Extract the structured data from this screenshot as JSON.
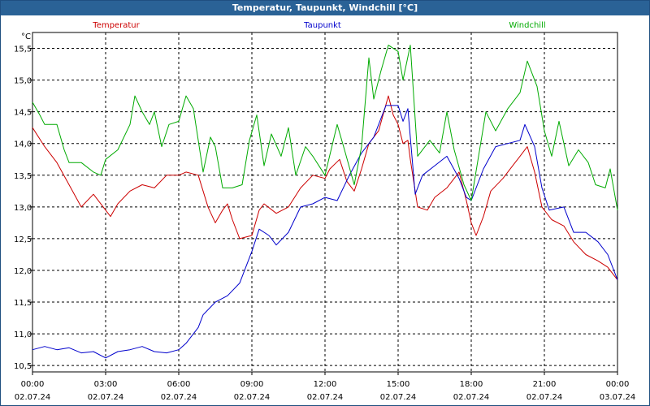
{
  "chart_data": {
    "type": "line",
    "title": "Temperatur, Taupunkt, Windchill [°C]",
    "unit_label": "°C",
    "ylim": [
      10.4,
      15.75
    ],
    "y_ticks": [
      "15,5",
      "15,0",
      "14,5",
      "14,0",
      "13,5",
      "13,0",
      "12,5",
      "12,0",
      "11,5",
      "11,0",
      "10,5"
    ],
    "y_tick_values": [
      15.5,
      15.0,
      14.5,
      14.0,
      13.5,
      13.0,
      12.5,
      12.0,
      11.5,
      11.0,
      10.5
    ],
    "xlim": [
      0,
      24
    ],
    "x_ticks": [
      {
        "hour": 0,
        "time": "00:00",
        "date": "02.07.24"
      },
      {
        "hour": 3,
        "time": "03:00",
        "date": "02.07.24"
      },
      {
        "hour": 6,
        "time": "06:00",
        "date": "02.07.24"
      },
      {
        "hour": 9,
        "time": "09:00",
        "date": "02.07.24"
      },
      {
        "hour": 12,
        "time": "12:00",
        "date": "02.07.24"
      },
      {
        "hour": 15,
        "time": "15:00",
        "date": "02.07.24"
      },
      {
        "hour": 18,
        "time": "18:00",
        "date": "02.07.24"
      },
      {
        "hour": 21,
        "time": "21:00",
        "date": "02.07.24"
      },
      {
        "hour": 24,
        "time": "00:00",
        "date": "03.07.24"
      }
    ],
    "grid": true,
    "series": [
      {
        "name": "Temperatur",
        "color": "#cc0000",
        "points": [
          [
            0,
            14.25
          ],
          [
            0.5,
            13.95
          ],
          [
            1,
            13.7
          ],
          [
            1.5,
            13.35
          ],
          [
            2,
            13.0
          ],
          [
            2.5,
            13.2
          ],
          [
            3,
            12.95
          ],
          [
            3.2,
            12.85
          ],
          [
            3.5,
            13.05
          ],
          [
            4,
            13.25
          ],
          [
            4.5,
            13.35
          ],
          [
            5,
            13.3
          ],
          [
            5.5,
            13.5
          ],
          [
            6,
            13.5
          ],
          [
            6.3,
            13.55
          ],
          [
            6.8,
            13.5
          ],
          [
            7.2,
            13.0
          ],
          [
            7.5,
            12.75
          ],
          [
            7.8,
            12.95
          ],
          [
            8,
            13.05
          ],
          [
            8.2,
            12.8
          ],
          [
            8.5,
            12.5
          ],
          [
            9,
            12.55
          ],
          [
            9.3,
            12.95
          ],
          [
            9.5,
            13.05
          ],
          [
            10,
            12.9
          ],
          [
            10.5,
            13.0
          ],
          [
            11,
            13.3
          ],
          [
            11.5,
            13.5
          ],
          [
            12,
            13.45
          ],
          [
            12.2,
            13.6
          ],
          [
            12.6,
            13.75
          ],
          [
            12.9,
            13.4
          ],
          [
            13.2,
            13.25
          ],
          [
            13.5,
            13.6
          ],
          [
            13.8,
            14.0
          ],
          [
            14.2,
            14.2
          ],
          [
            14.6,
            14.75
          ],
          [
            14.8,
            14.45
          ],
          [
            15,
            14.3
          ],
          [
            15.2,
            14.0
          ],
          [
            15.4,
            14.05
          ],
          [
            15.5,
            13.75
          ],
          [
            15.8,
            13.0
          ],
          [
            16.2,
            12.95
          ],
          [
            16.5,
            13.15
          ],
          [
            17,
            13.3
          ],
          [
            17.5,
            13.55
          ],
          [
            17.8,
            13.1
          ],
          [
            18,
            12.75
          ],
          [
            18.2,
            12.55
          ],
          [
            18.5,
            12.85
          ],
          [
            18.8,
            13.25
          ],
          [
            19.3,
            13.45
          ],
          [
            19.7,
            13.65
          ],
          [
            20,
            13.8
          ],
          [
            20.3,
            13.95
          ],
          [
            20.6,
            13.55
          ],
          [
            20.9,
            13.0
          ],
          [
            21.3,
            12.8
          ],
          [
            21.8,
            12.7
          ],
          [
            22.2,
            12.45
          ],
          [
            22.7,
            12.25
          ],
          [
            23.2,
            12.15
          ],
          [
            23.6,
            12.05
          ],
          [
            24,
            11.85
          ]
        ]
      },
      {
        "name": "Taupunkt",
        "color": "#0000cc",
        "points": [
          [
            0,
            10.75
          ],
          [
            0.5,
            10.8
          ],
          [
            1,
            10.75
          ],
          [
            1.5,
            10.78
          ],
          [
            2,
            10.7
          ],
          [
            2.5,
            10.72
          ],
          [
            3,
            10.62
          ],
          [
            3.5,
            10.72
          ],
          [
            4,
            10.75
          ],
          [
            4.5,
            10.8
          ],
          [
            5,
            10.72
          ],
          [
            5.5,
            10.7
          ],
          [
            6,
            10.75
          ],
          [
            6.3,
            10.85
          ],
          [
            6.8,
            11.1
          ],
          [
            7,
            11.3
          ],
          [
            7.5,
            11.5
          ],
          [
            8,
            11.6
          ],
          [
            8.5,
            11.8
          ],
          [
            9,
            12.3
          ],
          [
            9.3,
            12.65
          ],
          [
            9.7,
            12.55
          ],
          [
            10,
            12.4
          ],
          [
            10.5,
            12.6
          ],
          [
            11,
            13.0
          ],
          [
            11.5,
            13.05
          ],
          [
            12,
            13.15
          ],
          [
            12.5,
            13.1
          ],
          [
            13,
            13.5
          ],
          [
            13.5,
            13.85
          ],
          [
            14,
            14.1
          ],
          [
            14.5,
            14.6
          ],
          [
            15,
            14.6
          ],
          [
            15.2,
            14.35
          ],
          [
            15.4,
            14.55
          ],
          [
            15.7,
            13.2
          ],
          [
            16,
            13.5
          ],
          [
            16.5,
            13.65
          ],
          [
            17,
            13.8
          ],
          [
            17.5,
            13.45
          ],
          [
            17.8,
            13.15
          ],
          [
            18,
            13.1
          ],
          [
            18.5,
            13.6
          ],
          [
            19,
            13.95
          ],
          [
            19.5,
            14.0
          ],
          [
            20,
            14.05
          ],
          [
            20.2,
            14.3
          ],
          [
            20.6,
            13.95
          ],
          [
            20.9,
            13.3
          ],
          [
            21.2,
            12.95
          ],
          [
            21.8,
            13.0
          ],
          [
            22.2,
            12.6
          ],
          [
            22.7,
            12.6
          ],
          [
            23.2,
            12.45
          ],
          [
            23.6,
            12.25
          ],
          [
            24,
            11.85
          ]
        ]
      },
      {
        "name": "Windchill",
        "color": "#00aa00",
        "points": [
          [
            0,
            14.65
          ],
          [
            0.3,
            14.45
          ],
          [
            0.5,
            14.3
          ],
          [
            1,
            14.3
          ],
          [
            1.3,
            13.9
          ],
          [
            1.5,
            13.7
          ],
          [
            2,
            13.7
          ],
          [
            2.5,
            13.55
          ],
          [
            2.8,
            13.5
          ],
          [
            3,
            13.75
          ],
          [
            3.5,
            13.9
          ],
          [
            4,
            14.3
          ],
          [
            4.2,
            14.75
          ],
          [
            4.5,
            14.5
          ],
          [
            4.8,
            14.3
          ],
          [
            5,
            14.5
          ],
          [
            5.3,
            13.95
          ],
          [
            5.6,
            14.3
          ],
          [
            6,
            14.35
          ],
          [
            6.3,
            14.75
          ],
          [
            6.6,
            14.55
          ],
          [
            7,
            13.55
          ],
          [
            7.3,
            14.1
          ],
          [
            7.5,
            13.95
          ],
          [
            7.8,
            13.3
          ],
          [
            8.2,
            13.3
          ],
          [
            8.6,
            13.35
          ],
          [
            8.9,
            14.05
          ],
          [
            9.2,
            14.45
          ],
          [
            9.5,
            13.65
          ],
          [
            9.8,
            14.15
          ],
          [
            10.2,
            13.8
          ],
          [
            10.5,
            14.25
          ],
          [
            10.8,
            13.5
          ],
          [
            11.2,
            13.95
          ],
          [
            11.5,
            13.8
          ],
          [
            12,
            13.5
          ],
          [
            12.5,
            14.3
          ],
          [
            12.8,
            13.9
          ],
          [
            13.2,
            13.35
          ],
          [
            13.5,
            13.95
          ],
          [
            13.8,
            15.35
          ],
          [
            14,
            14.7
          ],
          [
            14.3,
            15.15
          ],
          [
            14.6,
            15.55
          ],
          [
            15,
            15.45
          ],
          [
            15.2,
            15.0
          ],
          [
            15.5,
            15.55
          ],
          [
            15.8,
            13.8
          ],
          [
            16.3,
            14.05
          ],
          [
            16.7,
            13.85
          ],
          [
            17,
            14.5
          ],
          [
            17.3,
            13.9
          ],
          [
            17.7,
            13.35
          ],
          [
            18,
            13.1
          ],
          [
            18.3,
            13.8
          ],
          [
            18.6,
            14.5
          ],
          [
            19,
            14.2
          ],
          [
            19.5,
            14.55
          ],
          [
            20,
            14.8
          ],
          [
            20.3,
            15.3
          ],
          [
            20.7,
            14.9
          ],
          [
            21,
            14.2
          ],
          [
            21.3,
            13.8
          ],
          [
            21.6,
            14.35
          ],
          [
            22,
            13.65
          ],
          [
            22.4,
            13.9
          ],
          [
            22.8,
            13.7
          ],
          [
            23.1,
            13.35
          ],
          [
            23.5,
            13.3
          ],
          [
            23.7,
            13.6
          ],
          [
            24,
            12.95
          ]
        ]
      }
    ]
  }
}
